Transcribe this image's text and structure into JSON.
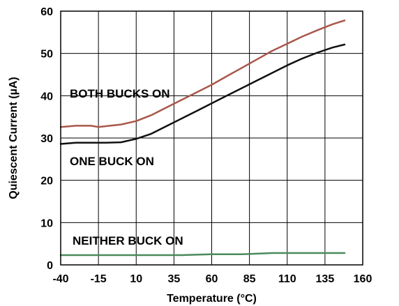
{
  "chart_data": {
    "type": "line",
    "title": "",
    "xlabel": "Temperature (°C)",
    "ylabel": "Quiescent Current (µA)",
    "xlim": [
      -40,
      160
    ],
    "ylim": [
      0,
      60
    ],
    "xticks": [
      -40,
      -15,
      10,
      35,
      60,
      85,
      110,
      135,
      160
    ],
    "yticks": [
      0,
      10,
      20,
      30,
      40,
      50,
      60
    ],
    "grid": true,
    "legend": "none",
    "series": [
      {
        "color": "#a8574a",
        "label": "BOTH BUCKS ON",
        "x": [
          -40,
          -30,
          -20,
          -15,
          -10,
          0,
          10,
          20,
          30,
          40,
          50,
          60,
          70,
          80,
          90,
          100,
          110,
          120,
          130,
          140,
          148
        ],
        "values": [
          32.6,
          32.9,
          32.9,
          32.6,
          32.8,
          33.2,
          34.0,
          35.4,
          37.2,
          39.0,
          40.8,
          42.6,
          44.6,
          46.6,
          48.6,
          50.6,
          52.3,
          54.0,
          55.5,
          56.9,
          57.8
        ]
      },
      {
        "color": "#111111",
        "label": "ONE BUCK ON",
        "x": [
          -40,
          -30,
          -20,
          -10,
          0,
          10,
          20,
          30,
          40,
          50,
          60,
          70,
          80,
          90,
          100,
          110,
          120,
          130,
          140,
          148
        ],
        "values": [
          28.6,
          28.9,
          28.9,
          28.9,
          29.0,
          29.8,
          31.0,
          32.8,
          34.6,
          36.4,
          38.2,
          40.0,
          41.8,
          43.6,
          45.4,
          47.2,
          48.8,
          50.2,
          51.4,
          52.1
        ]
      },
      {
        "color": "#4a8a5a",
        "label": "NEITHER BUCK ON",
        "x": [
          -40,
          -20,
          0,
          20,
          40,
          60,
          80,
          100,
          120,
          148
        ],
        "values": [
          2.3,
          2.3,
          2.3,
          2.3,
          2.3,
          2.5,
          2.5,
          2.8,
          2.8,
          2.8
        ]
      }
    ],
    "annotations": [
      "BOTH BUCKS ON",
      "ONE BUCK ON",
      "NEITHER BUCK ON"
    ]
  }
}
